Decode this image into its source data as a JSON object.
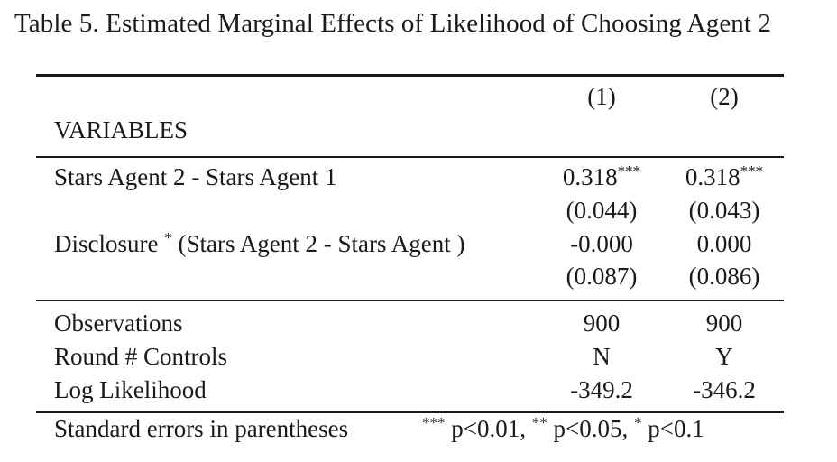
{
  "caption": "Table 5. Estimated Marginal Effects of Likelihood of Choosing Agent 2",
  "columns": [
    "(1)",
    "(2)"
  ],
  "variables_header": "VARIABLES",
  "rows": [
    {
      "label": "Stars Agent 2 - Stars Agent 1",
      "c1": "0.318",
      "c1_stars": "***",
      "c2": "0.318",
      "c2_stars": "***"
    },
    {
      "label": "",
      "c1": "(0.044)",
      "c2": "(0.043)"
    },
    {
      "label": "Disclosure",
      "label_sup": "*",
      "label_rest": " (Stars Agent 2 - Stars Agent )",
      "c1": "-0.000",
      "c2": "0.000"
    },
    {
      "label": "",
      "c1": "(0.087)",
      "c2": "(0.086)"
    }
  ],
  "stats": [
    {
      "label": "Observations",
      "c1": "900",
      "c2": "900"
    },
    {
      "label": "Round # Controls",
      "c1": "N",
      "c2": "Y"
    },
    {
      "label": "Log Likelihood",
      "c1": "-349.2",
      "c2": "-346.2"
    }
  ],
  "notes": {
    "left": "Standard errors in parentheses",
    "sig1_stars": "***",
    "sig1_text": " p<0.01, ",
    "sig2_stars": "**",
    "sig2_text": " p<0.05, ",
    "sig3_stars": "*",
    "sig3_text": " p<0.1"
  }
}
